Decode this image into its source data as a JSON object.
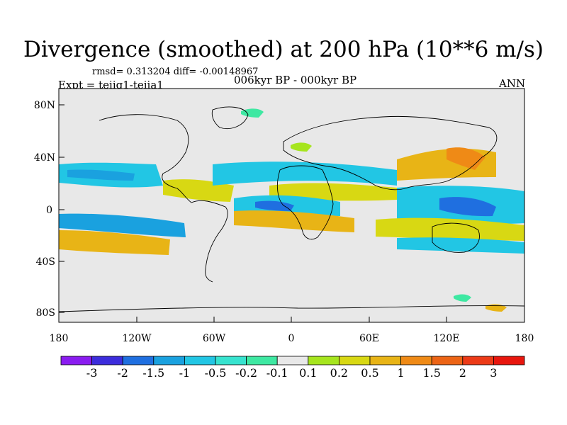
{
  "title": "Divergence (smoothed) at 200 hPa (10**6 m/s)",
  "stats": "rmsd= 0.313204 diff= -0.00148967",
  "experiment": "Expt = teiig1-teiia1",
  "period": "006kyr BP - 000kyr BP",
  "season": "ANN",
  "y_ticks": [
    "80N",
    "40N",
    "0",
    "40S",
    "80S"
  ],
  "x_ticks": [
    "180",
    "120W",
    "60W",
    "0",
    "60E",
    "120E",
    "180"
  ],
  "colorbar": {
    "labels": [
      "-3",
      "-2",
      "-1.5",
      "-1",
      "-0.5",
      "-0.2",
      "-0.1",
      "0.1",
      "0.2",
      "0.5",
      "1",
      "1.5",
      "2",
      "3"
    ],
    "colors": [
      "#8a1cf0",
      "#3c2ddc",
      "#1f6fe0",
      "#1aa1df",
      "#22c6e4",
      "#37e3cf",
      "#3ee8a2",
      "#e8e8e8",
      "#a6e51e",
      "#d8d813",
      "#e8b416",
      "#ef8a16",
      "#ec6415",
      "#ec3a17",
      "#e8160e"
    ]
  },
  "map": {
    "background": "#e8e8e8",
    "lat_range": [
      -90,
      90
    ],
    "lon_range": [
      -180,
      180
    ]
  }
}
